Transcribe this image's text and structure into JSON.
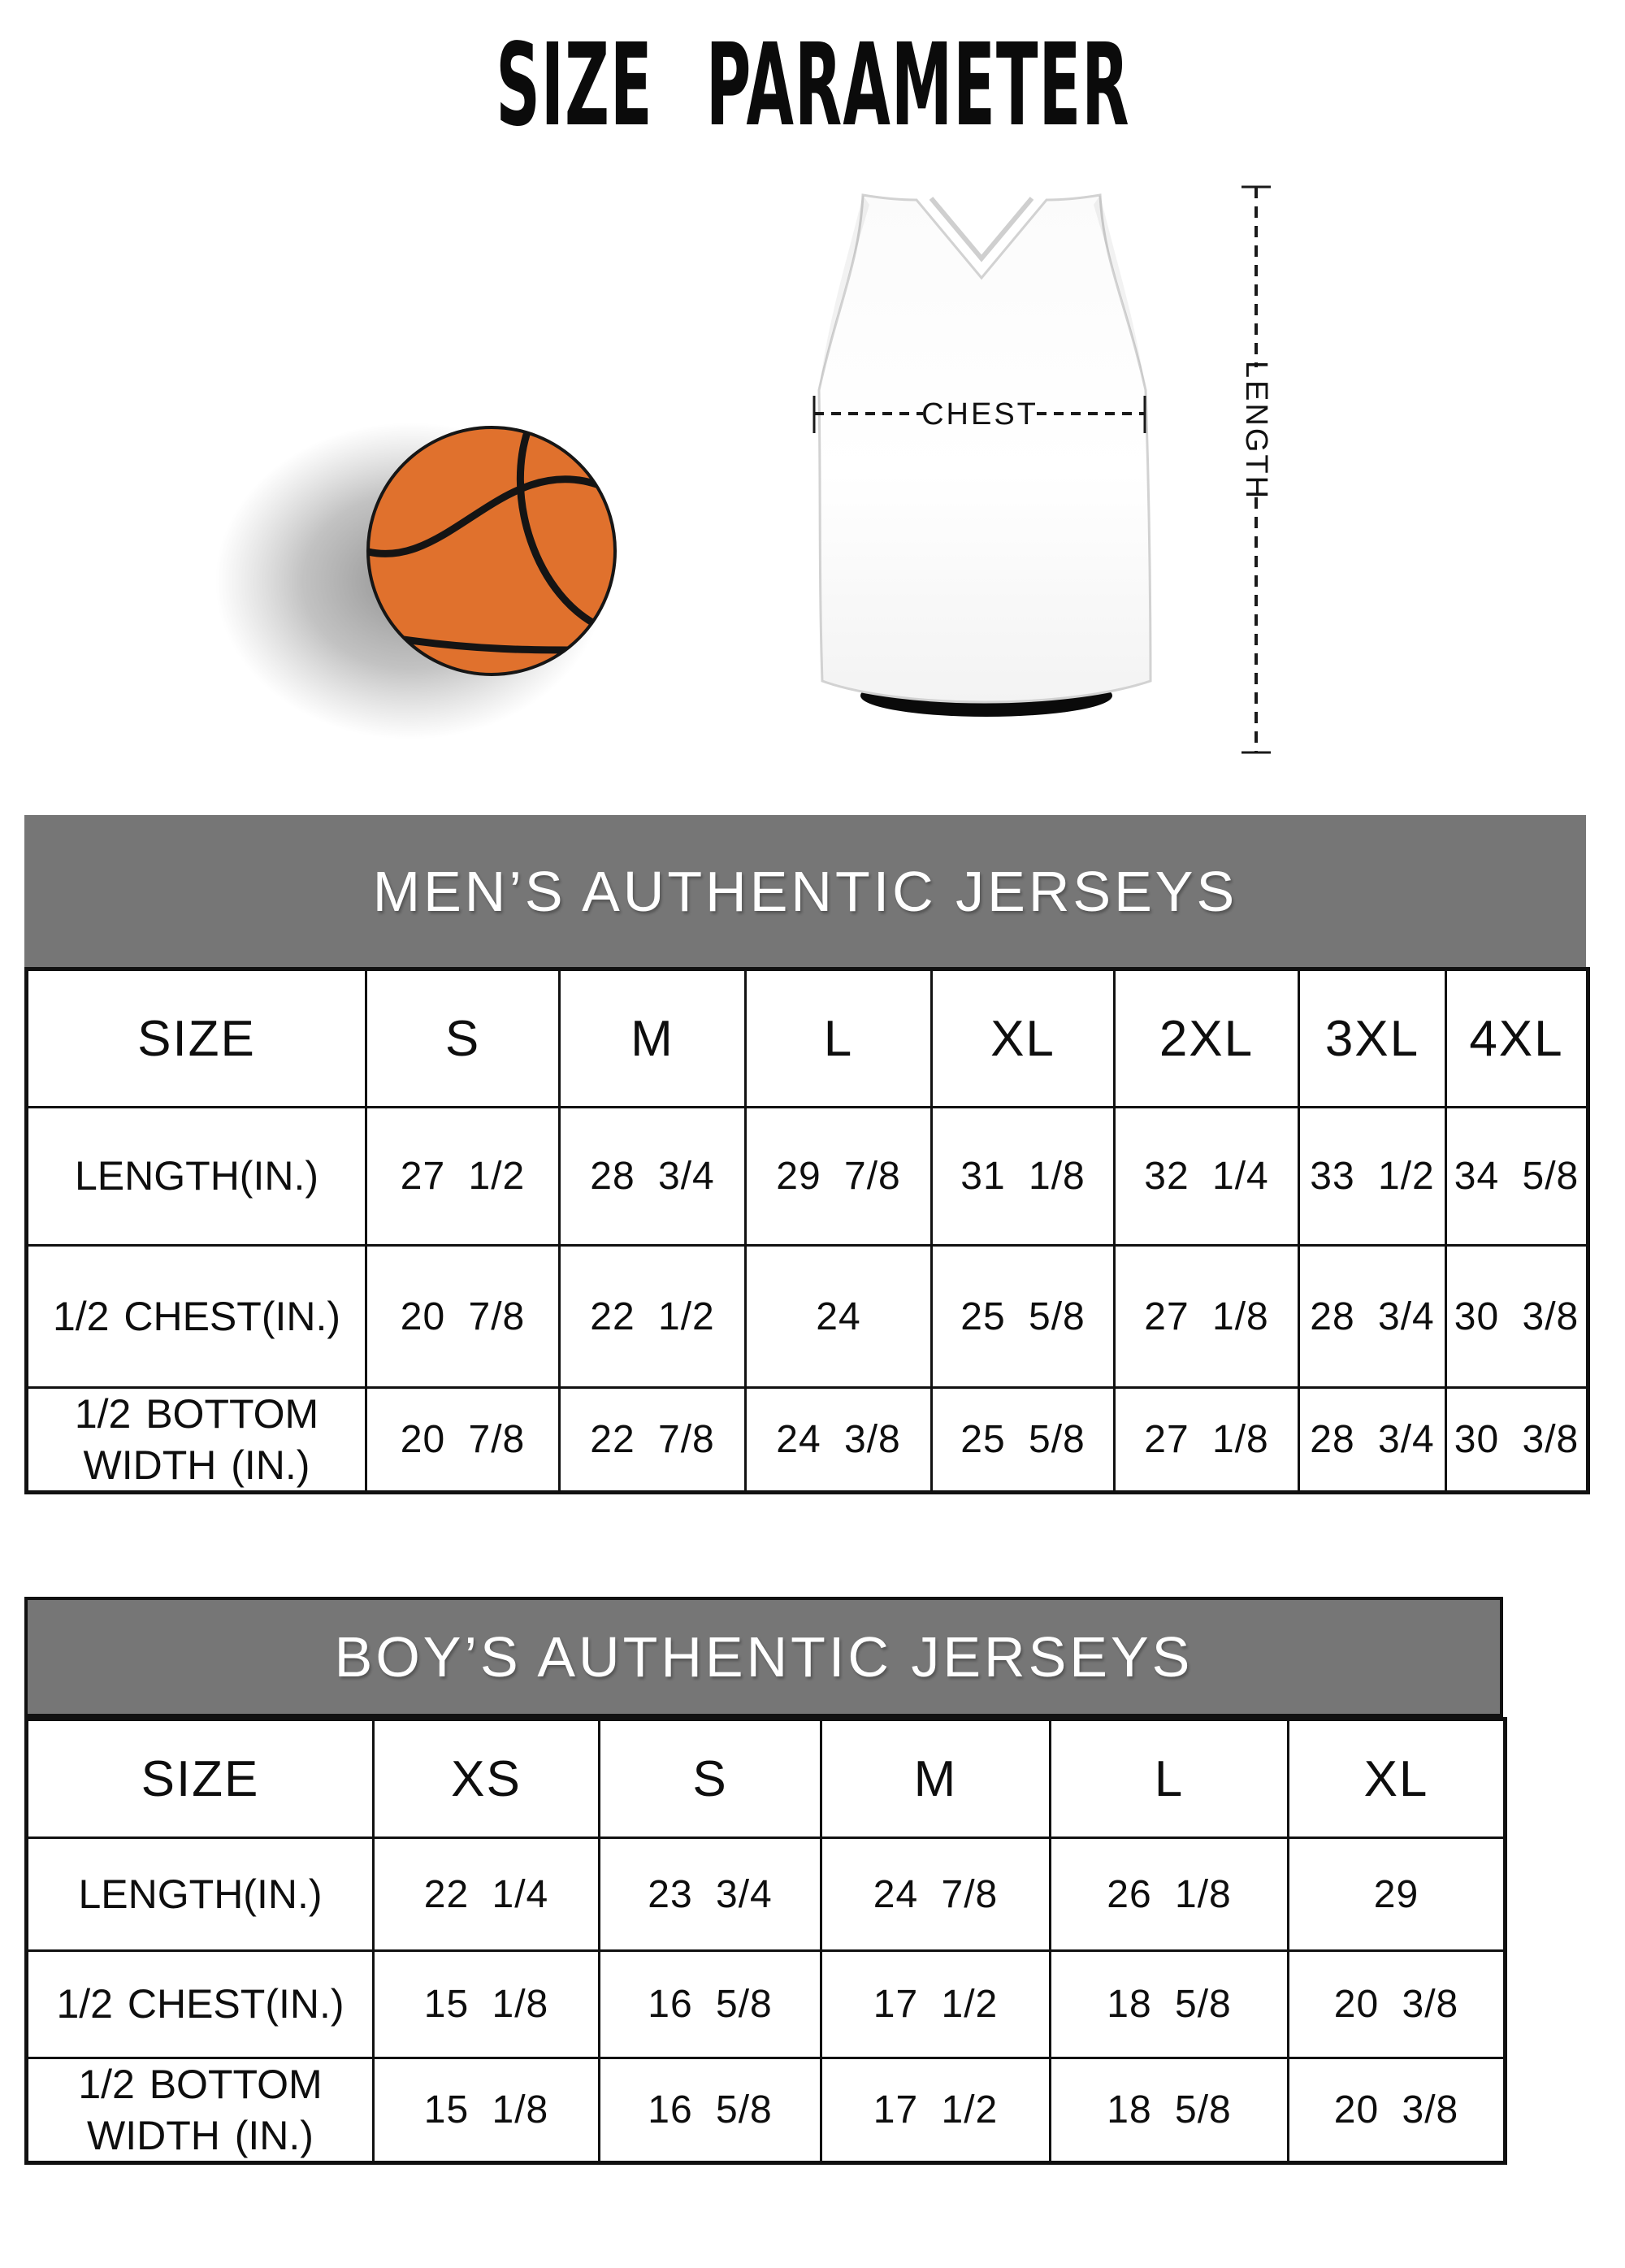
{
  "title": "SIZE PARAMETER",
  "diagram": {
    "chest_label": "CHEST",
    "length_label": "LENGTH"
  },
  "tables": {
    "men": {
      "heading": "MEN’S AUTHENTIC JERSEYS",
      "col_header": "SIZE",
      "sizes": [
        "S",
        "M",
        "L",
        "XL",
        "2XL",
        "3XL",
        "4XL"
      ],
      "rows": [
        {
          "label": "LENGTH(IN.)",
          "values": [
            "27 1/2",
            "28 3/4",
            "29 7/8",
            "31 1/8",
            "32 1/4",
            "33 1/2",
            "34 5/8"
          ]
        },
        {
          "label": "1/2 CHEST(IN.)",
          "values": [
            "20 7/8",
            "22 1/2",
            "24",
            "25 5/8",
            "27 1/8",
            "28 3/4",
            "30 3/8"
          ]
        },
        {
          "label": "1/2 BOTTOM\nWIDTH (IN.)",
          "values": [
            "20 7/8",
            "22 7/8",
            "24 3/8",
            "25 5/8",
            "27 1/8",
            "28 3/4",
            "30 3/8"
          ]
        }
      ]
    },
    "boys": {
      "heading": "BOY’S AUTHENTIC JERSEYS",
      "col_header": "SIZE",
      "sizes": [
        "XS",
        "S",
        "M",
        "L",
        "XL"
      ],
      "rows": [
        {
          "label": "LENGTH(IN.)",
          "values": [
            "22 1/4",
            "23 3/4",
            "24 7/8",
            "26 1/8",
            "29"
          ]
        },
        {
          "label": "1/2 CHEST(IN.)",
          "values": [
            "15 1/8",
            "16 5/8",
            "17 1/2",
            "18 5/8",
            "20 3/8"
          ]
        },
        {
          "label": "1/2 BOTTOM\nWIDTH (IN.)",
          "values": [
            "15 1/8",
            "16 5/8",
            "17 1/2",
            "18 5/8",
            "20 3/8"
          ]
        }
      ]
    }
  },
  "colors": {
    "section_band": "#767676",
    "band_text": "#ffffff",
    "table_border": "#111111",
    "table_text": "#0e0e0e",
    "basketball_orange": "#e0712d",
    "basketball_seam": "#141414",
    "annotation": "#1a1a1a"
  }
}
